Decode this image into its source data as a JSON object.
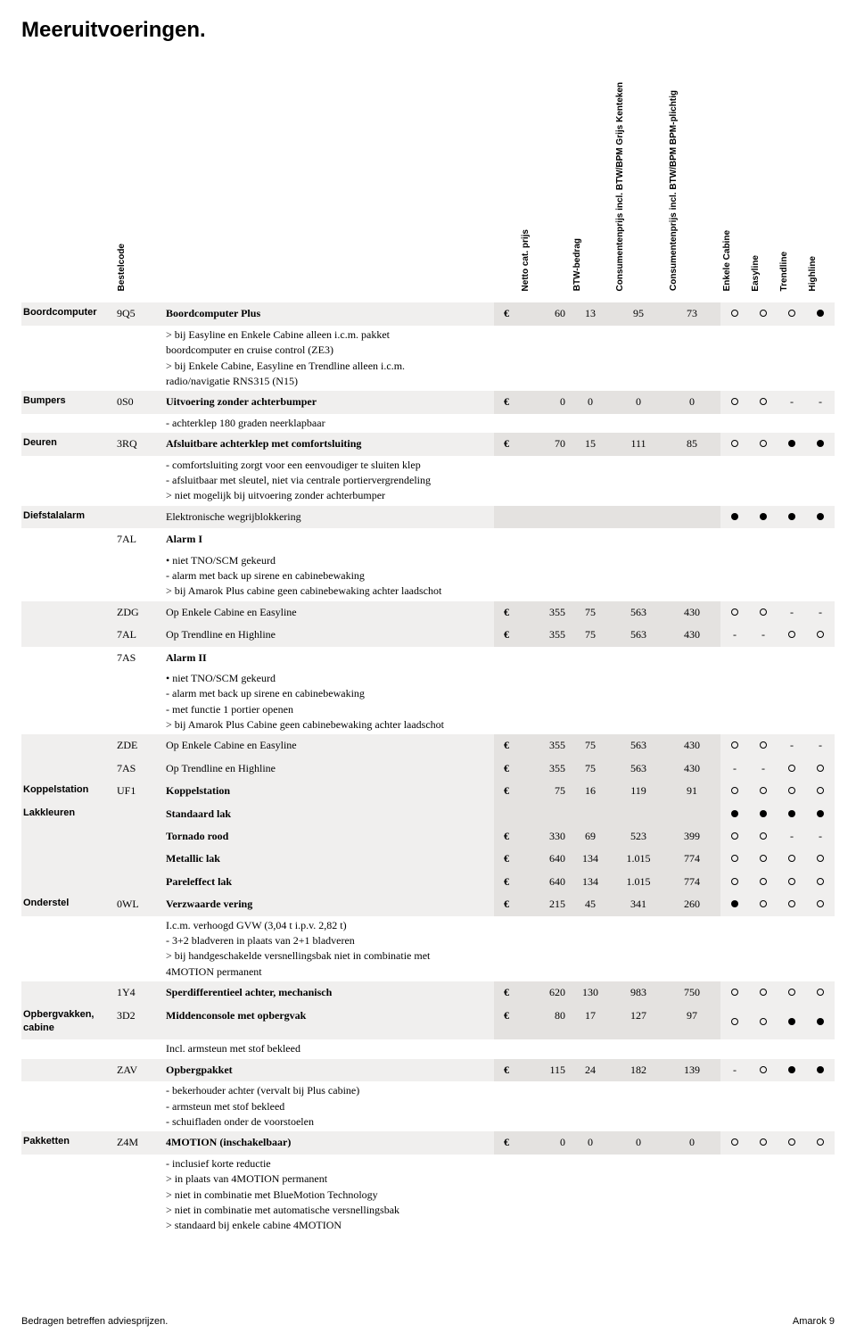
{
  "title": "Meeruitvoeringen.",
  "headers": {
    "bestelcode": "Bestelcode",
    "netto": "Netto cat. prijs",
    "btw": "BTW-bedrag",
    "cons_grijs": "Consumentenprijs\nincl. BTW/BPM\nGrijs Kenteken",
    "cons_bpm": "Consumentenprijs\nincl. BTW/BPM\nBPM-plichtig",
    "trim1": "Enkele Cabine",
    "trim2": "Easyline",
    "trim3": "Trendline",
    "trim4": "Highline"
  },
  "footer_left": "Bedragen betreffen adviesprijzen.",
  "footer_right": "Amarok  9",
  "groups": [
    {
      "cat": "Boordcomputer",
      "rows": [
        {
          "code": "9Q5",
          "lines": [
            {
              "t": "Boordcomputer Plus",
              "b": 1
            }
          ],
          "shade": "abc",
          "eur": "€",
          "p": [
            "60",
            "13",
            "95",
            "73"
          ],
          "tr": [
            "o",
            "o",
            "o",
            "f"
          ]
        },
        {
          "lines": [
            {
              "t": "> bij Easyline en Enkele Cabine alleen i.c.m. pakket"
            },
            {
              "t": "  boordcomputer en cruise control (ZE3)"
            },
            {
              "t": "> bij Enkele Cabine, Easyline en Trendline alleen i.c.m."
            },
            {
              "t": "  radio/navigatie RNS315 (N15)"
            }
          ],
          "sub": 1
        }
      ]
    },
    {
      "cat": "Bumpers",
      "rows": [
        {
          "code": "0S0",
          "lines": [
            {
              "t": "Uitvoering zonder achterbumper",
              "b": 1
            }
          ],
          "shade": "abc",
          "eur": "€",
          "p": [
            "0",
            "0",
            "0",
            "0"
          ],
          "tr": [
            "o",
            "o",
            "-",
            "-"
          ]
        },
        {
          "lines": [
            {
              "t": "- achterklep 180 graden neerklapbaar"
            }
          ],
          "sub": 1
        }
      ]
    },
    {
      "cat": "Deuren",
      "rows": [
        {
          "code": "3RQ",
          "lines": [
            {
              "t": "Afsluitbare achterklep met comfortsluiting",
              "b": 1
            }
          ],
          "shade": "abc",
          "eur": "€",
          "p": [
            "70",
            "15",
            "111",
            "85"
          ],
          "tr": [
            "o",
            "o",
            "f",
            "f"
          ]
        },
        {
          "lines": [
            {
              "t": "- comfortsluiting zorgt voor een eenvoudiger te sluiten klep"
            },
            {
              "t": "- afsluitbaar met sleutel, niet via centrale portiervergrendeling"
            },
            {
              "t": "> niet mogelijk bij uitvoering zonder achterbumper"
            }
          ],
          "sub": 1
        }
      ]
    },
    {
      "cat": "Diefstalalarm",
      "rows": [
        {
          "lines": [
            {
              "t": "Elektronische wegrijblokkering"
            }
          ],
          "shade": "abc",
          "tr": [
            "f",
            "f",
            "f",
            "f"
          ]
        },
        {
          "code": "7AL",
          "lines": [
            {
              "t": "Alarm I",
              "b": 1
            }
          ]
        },
        {
          "lines": [
            {
              "t": "• niet TNO/SCM gekeurd"
            },
            {
              "t": "- alarm met back up sirene en cabinebewaking"
            },
            {
              "t": "> bij Amarok Plus cabine geen cabinebewaking achter laadschot"
            }
          ],
          "sub": 1
        },
        {
          "code": "ZDG",
          "lines": [
            {
              "t": "Op Enkele Cabine en Easyline"
            }
          ],
          "shade": "abc",
          "eur": "€",
          "p": [
            "355",
            "75",
            "563",
            "430"
          ],
          "tr": [
            "o",
            "o",
            "-",
            "-"
          ]
        },
        {
          "code": "7AL",
          "lines": [
            {
              "t": "Op Trendline en Highline"
            }
          ],
          "shade": "abc",
          "eur": "€",
          "p": [
            "355",
            "75",
            "563",
            "430"
          ],
          "tr": [
            "-",
            "-",
            "o",
            "o"
          ]
        },
        {
          "code": "7AS",
          "lines": [
            {
              "t": "Alarm II",
              "b": 1
            }
          ]
        },
        {
          "lines": [
            {
              "t": "• niet TNO/SCM gekeurd"
            },
            {
              "t": "- alarm met back up sirene en cabinebewaking"
            },
            {
              "t": "- met functie 1 portier openen"
            },
            {
              "t": "> bij Amarok Plus Cabine geen cabinebewaking achter laadschot"
            }
          ],
          "sub": 1
        },
        {
          "code": "ZDE",
          "lines": [
            {
              "t": "Op Enkele Cabine en Easyline"
            }
          ],
          "shade": "abc",
          "eur": "€",
          "p": [
            "355",
            "75",
            "563",
            "430"
          ],
          "tr": [
            "o",
            "o",
            "-",
            "-"
          ]
        },
        {
          "code": "7AS",
          "lines": [
            {
              "t": "Op Trendline en Highline"
            }
          ],
          "shade": "abc",
          "eur": "€",
          "p": [
            "355",
            "75",
            "563",
            "430"
          ],
          "tr": [
            "-",
            "-",
            "o",
            "o"
          ]
        }
      ]
    },
    {
      "cat": "Koppelstation",
      "rows": [
        {
          "code": "UF1",
          "lines": [
            {
              "t": "Koppelstation",
              "b": 1
            }
          ],
          "shade": "abc",
          "eur": "€",
          "p": [
            "75",
            "16",
            "119",
            "91"
          ],
          "tr": [
            "o",
            "o",
            "o",
            "o"
          ]
        }
      ]
    },
    {
      "cat": "Lakkleuren",
      "rows": [
        {
          "lines": [
            {
              "t": "Standaard lak",
              "b": 1
            }
          ],
          "shade": "abc",
          "tr": [
            "f",
            "f",
            "f",
            "f"
          ]
        },
        {
          "lines": [
            {
              "t": "Tornado rood",
              "b": 1
            }
          ],
          "shade": "abc",
          "eur": "€",
          "p": [
            "330",
            "69",
            "523",
            "399"
          ],
          "tr": [
            "o",
            "o",
            "-",
            "-"
          ]
        },
        {
          "lines": [
            {
              "t": "Metallic lak",
              "b": 1
            }
          ],
          "shade": "abc",
          "eur": "€",
          "p": [
            "640",
            "134",
            "1.015",
            "774"
          ],
          "tr": [
            "o",
            "o",
            "o",
            "o"
          ]
        },
        {
          "lines": [
            {
              "t": "Pareleffect lak",
              "b": 1
            }
          ],
          "shade": "abc",
          "eur": "€",
          "p": [
            "640",
            "134",
            "1.015",
            "774"
          ],
          "tr": [
            "o",
            "o",
            "o",
            "o"
          ]
        }
      ]
    },
    {
      "cat": "Onderstel",
      "rows": [
        {
          "code": "0WL",
          "lines": [
            {
              "t": "Verzwaarde vering",
              "b": 1
            }
          ],
          "shade": "abc",
          "eur": "€",
          "p": [
            "215",
            "45",
            "341",
            "260"
          ],
          "tr": [
            "f",
            "o",
            "o",
            "o"
          ]
        },
        {
          "lines": [
            {
              "t": "I.c.m. verhoogd GVW (3,04 t i.p.v. 2,82 t)"
            },
            {
              "t": "- 3+2 bladveren in plaats van 2+1 bladveren"
            },
            {
              "t": "> bij handgeschakelde versnellingsbak niet in combinatie met"
            },
            {
              "t": "  4MOTION permanent"
            }
          ],
          "sub": 1
        },
        {
          "code": "1Y4",
          "lines": [
            {
              "t": "Sperdifferentieel achter, mechanisch",
              "b": 1
            }
          ],
          "shade": "abc",
          "eur": "€",
          "p": [
            "620",
            "130",
            "983",
            "750"
          ],
          "tr": [
            "o",
            "o",
            "o",
            "o"
          ]
        }
      ]
    },
    {
      "cat": "Opbergvakken, cabine",
      "rows": [
        {
          "code": "3D2",
          "lines": [
            {
              "t": "Middenconsole met opbergvak",
              "b": 1
            }
          ],
          "shade": "abc",
          "eur": "€",
          "p": [
            "80",
            "17",
            "127",
            "97"
          ],
          "tr": [
            "o",
            "o",
            "f",
            "f"
          ]
        },
        {
          "lines": [
            {
              "t": "Incl. armsteun met stof bekleed"
            }
          ],
          "sub": 1
        },
        {
          "code": "ZAV",
          "lines": [
            {
              "t": "Opbergpakket",
              "b": 1
            }
          ],
          "shade": "abc",
          "eur": "€",
          "p": [
            "115",
            "24",
            "182",
            "139"
          ],
          "tr": [
            "-",
            "o",
            "f",
            "f"
          ]
        },
        {
          "lines": [
            {
              "t": "- bekerhouder achter (vervalt bij Plus cabine)"
            },
            {
              "t": "- armsteun met stof bekleed"
            },
            {
              "t": "- schuifladen onder de voorstoelen"
            }
          ],
          "sub": 1
        }
      ]
    },
    {
      "cat": "Pakketten",
      "rows": [
        {
          "code": "Z4M",
          "lines": [
            {
              "t": "4MOTION (inschakelbaar)",
              "b": 1
            }
          ],
          "shade": "abc",
          "eur": "€",
          "p": [
            "0",
            "0",
            "0",
            "0"
          ],
          "tr": [
            "o",
            "o",
            "o",
            "o"
          ]
        },
        {
          "lines": [
            {
              "t": "- inclusief korte reductie"
            },
            {
              "t": "> in plaats van 4MOTION permanent"
            },
            {
              "t": "> niet in combinatie met BlueMotion Technology"
            },
            {
              "t": "> niet in combinatie met automatische versnellingsbak"
            },
            {
              "t": "> standaard bij enkele cabine 4MOTION"
            }
          ],
          "sub": 1
        }
      ]
    }
  ]
}
